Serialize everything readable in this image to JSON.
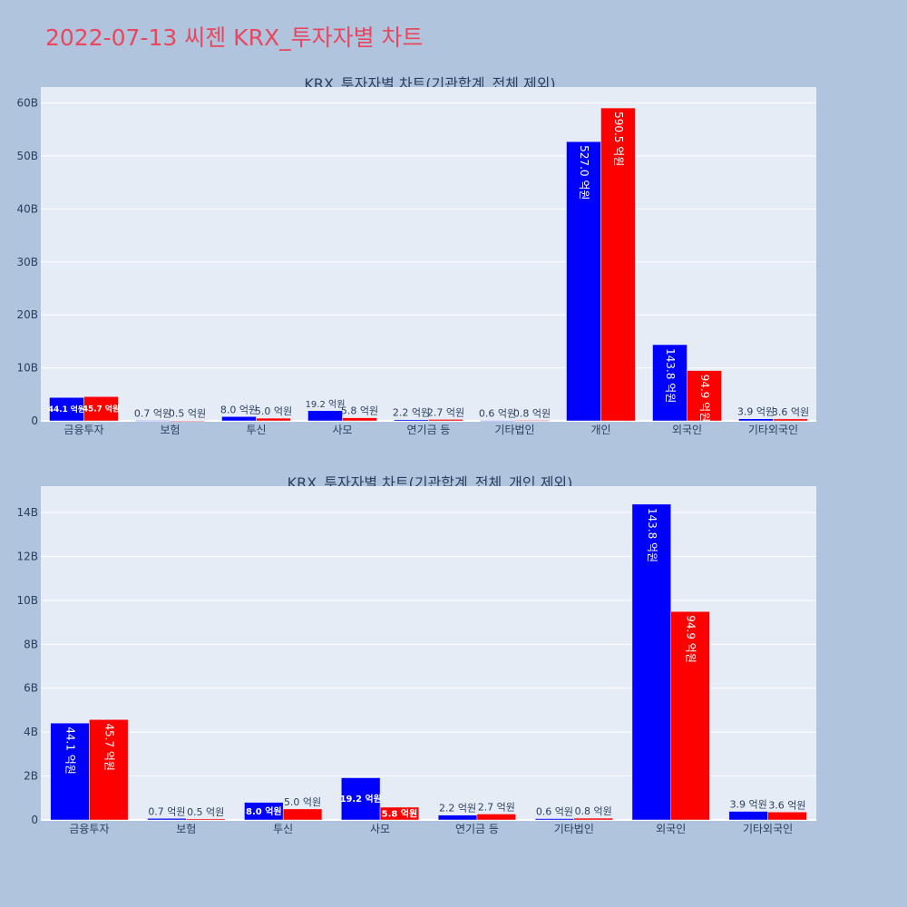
{
  "page": {
    "title": "2022-07-13 씨젠 KRX_투자자별 차트"
  },
  "colors": {
    "buy": "#0000ff",
    "sell": "#ff0000",
    "plot_bg": "#e5ecf6",
    "grid": "#ffffff",
    "text": "#2a3f5f"
  },
  "chart_data": [
    {
      "type": "bar",
      "title": "KRX_투자자별 차트(기관합계_전체 제외)",
      "categories": [
        "금융투자",
        "보험",
        "투신",
        "사모",
        "연기금 등",
        "기타법인",
        "개인",
        "외국인",
        "기타외국인"
      ],
      "series": [
        {
          "color": "#0000ff",
          "values": [
            4.41,
            0.07,
            0.8,
            1.92,
            0.22,
            0.06,
            52.7,
            14.38,
            0.39
          ],
          "labels": [
            "44.1 억원",
            "0.7 억원",
            "8.0 억원",
            "19.2 억원",
            "2.2 억원",
            "0.6 억원",
            "527.0 억원",
            "143.8 억원",
            "3.9 억원"
          ]
        },
        {
          "color": "#ff0000",
          "values": [
            4.57,
            0.05,
            0.5,
            0.58,
            0.27,
            0.08,
            59.05,
            9.49,
            0.36
          ],
          "labels": [
            "45.7 억원",
            "0.5 억원",
            "5.0 억원",
            "5.8 억원",
            "2.7 억원",
            "0.8 억원",
            "590.5 억원",
            "94.9 억원",
            "3.6 억원"
          ]
        }
      ],
      "ylim": [
        0,
        63
      ],
      "yticks": [
        0,
        10,
        20,
        30,
        40,
        50,
        60
      ],
      "ytick_labels": [
        "0",
        "10B",
        "20B",
        "30B",
        "40B",
        "50B",
        "60B"
      ],
      "grid": true
    },
    {
      "type": "bar",
      "title": "KRX_투자자별 차트(기관합계_전체_개인 제외)",
      "categories": [
        "금융투자",
        "보험",
        "투신",
        "사모",
        "연기금 등",
        "기타법인",
        "외국인",
        "기타외국인"
      ],
      "series": [
        {
          "color": "#0000ff",
          "values": [
            4.41,
            0.07,
            0.8,
            1.92,
            0.22,
            0.06,
            14.38,
            0.39
          ],
          "labels": [
            "44.1 억원",
            "0.7 억원",
            "8.0 억원",
            "19.2 억원",
            "2.2 억원",
            "0.6 억원",
            "143.8 억원",
            "3.9 억원"
          ]
        },
        {
          "color": "#ff0000",
          "values": [
            4.57,
            0.05,
            0.5,
            0.58,
            0.27,
            0.08,
            9.49,
            0.36
          ],
          "labels": [
            "45.7 억원",
            "0.5 억원",
            "5.0 억원",
            "5.8 억원",
            "2.7 억원",
            "0.8 억원",
            "94.9 억원",
            "3.6 억원"
          ]
        }
      ],
      "ylim": [
        0,
        15.2
      ],
      "yticks": [
        0,
        2,
        4,
        6,
        8,
        10,
        12,
        14
      ],
      "ytick_labels": [
        "0",
        "2B",
        "4B",
        "6B",
        "8B",
        "10B",
        "12B",
        "14B"
      ],
      "grid": true
    }
  ]
}
